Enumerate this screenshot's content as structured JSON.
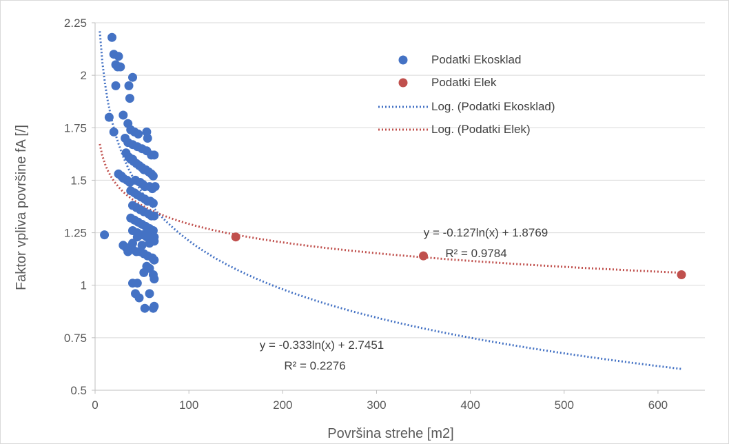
{
  "chart_data": {
    "type": "scatter",
    "title": "",
    "xlabel": "Površina strehe [m2]",
    "ylabel": "Faktor vpliva površine fA [/]",
    "xlim": [
      0,
      650
    ],
    "ylim": [
      0.5,
      2.25
    ],
    "xticks": [
      0,
      100,
      200,
      300,
      400,
      500,
      600
    ],
    "yticks": [
      0.5,
      0.75,
      1,
      1.25,
      1.5,
      1.75,
      2,
      2.25
    ],
    "ytick_labels": [
      "0.5",
      "0.75",
      "1",
      "1.25",
      "1.5",
      "1.75",
      "2",
      "2.25"
    ],
    "grid": "horizontal",
    "legend_position": "top-right",
    "series": [
      {
        "name": "Podatki Ekosklad",
        "color": "#4472c4",
        "marker": "circle",
        "x": [
          18,
          20,
          25,
          22,
          24,
          27,
          40,
          22,
          36,
          37,
          15,
          20,
          30,
          35,
          38,
          42,
          46,
          55,
          56,
          32,
          35,
          40,
          45,
          50,
          55,
          60,
          63,
          33,
          36,
          38,
          40,
          41,
          44,
          47,
          50,
          52,
          54,
          57,
          60,
          62,
          25,
          28,
          30,
          34,
          37,
          43,
          48,
          51,
          53,
          58,
          61,
          64,
          38,
          42,
          45,
          49,
          53,
          56,
          59,
          62,
          40,
          44,
          48,
          52,
          57,
          60,
          63,
          38,
          42,
          46,
          50,
          54,
          58,
          62,
          40,
          45,
          50,
          55,
          60,
          63,
          10,
          30,
          33,
          36,
          40,
          44,
          48,
          52,
          56,
          61,
          63,
          35,
          40,
          45,
          50,
          55,
          58,
          63,
          55,
          58,
          62,
          40,
          45,
          52,
          63,
          43,
          47,
          53,
          63,
          58,
          62
        ],
        "y": [
          2.18,
          2.1,
          2.09,
          2.05,
          2.04,
          2.04,
          1.99,
          1.95,
          1.95,
          1.89,
          1.8,
          1.73,
          1.81,
          1.77,
          1.74,
          1.73,
          1.72,
          1.73,
          1.7,
          1.7,
          1.68,
          1.67,
          1.66,
          1.65,
          1.64,
          1.62,
          1.62,
          1.63,
          1.61,
          1.6,
          1.6,
          1.59,
          1.58,
          1.57,
          1.56,
          1.55,
          1.55,
          1.54,
          1.53,
          1.52,
          1.53,
          1.52,
          1.51,
          1.5,
          1.49,
          1.5,
          1.49,
          1.48,
          1.47,
          1.47,
          1.46,
          1.47,
          1.45,
          1.44,
          1.43,
          1.42,
          1.41,
          1.4,
          1.4,
          1.39,
          1.38,
          1.37,
          1.36,
          1.35,
          1.34,
          1.33,
          1.33,
          1.32,
          1.31,
          1.3,
          1.29,
          1.28,
          1.27,
          1.26,
          1.26,
          1.25,
          1.24,
          1.23,
          1.22,
          1.21,
          1.24,
          1.19,
          1.18,
          1.17,
          1.17,
          1.16,
          1.16,
          1.15,
          1.14,
          1.13,
          1.12,
          1.16,
          1.2,
          1.23,
          1.19,
          1.25,
          1.2,
          1.23,
          1.09,
          1.08,
          1.05,
          1.01,
          1.01,
          1.06,
          1.03,
          0.96,
          0.94,
          0.89,
          0.9,
          0.96,
          0.89
        ]
      },
      {
        "name": "Podatki Elek",
        "color": "#c0504d",
        "marker": "circle",
        "x": [
          150,
          350,
          625
        ],
        "y": [
          1.23,
          1.14,
          1.05
        ]
      }
    ],
    "trendlines": [
      {
        "name": "Log. (Podatki Ekosklad)",
        "color": "#4472c4",
        "style": "dotted",
        "a": -0.333,
        "b": 2.7451,
        "x_range": [
          5,
          625
        ],
        "equation": "y = -0.333ln(x) + 2.7451",
        "r2": "R² = 0.2276"
      },
      {
        "name": "Log. (Podatki Elek)",
        "color": "#c0504d",
        "style": "dotted",
        "a": -0.127,
        "b": 1.8769,
        "x_range": [
          5,
          625
        ],
        "equation": "y = -0.127ln(x) + 1.8769",
        "r2": "R² = 0.9784"
      }
    ]
  }
}
